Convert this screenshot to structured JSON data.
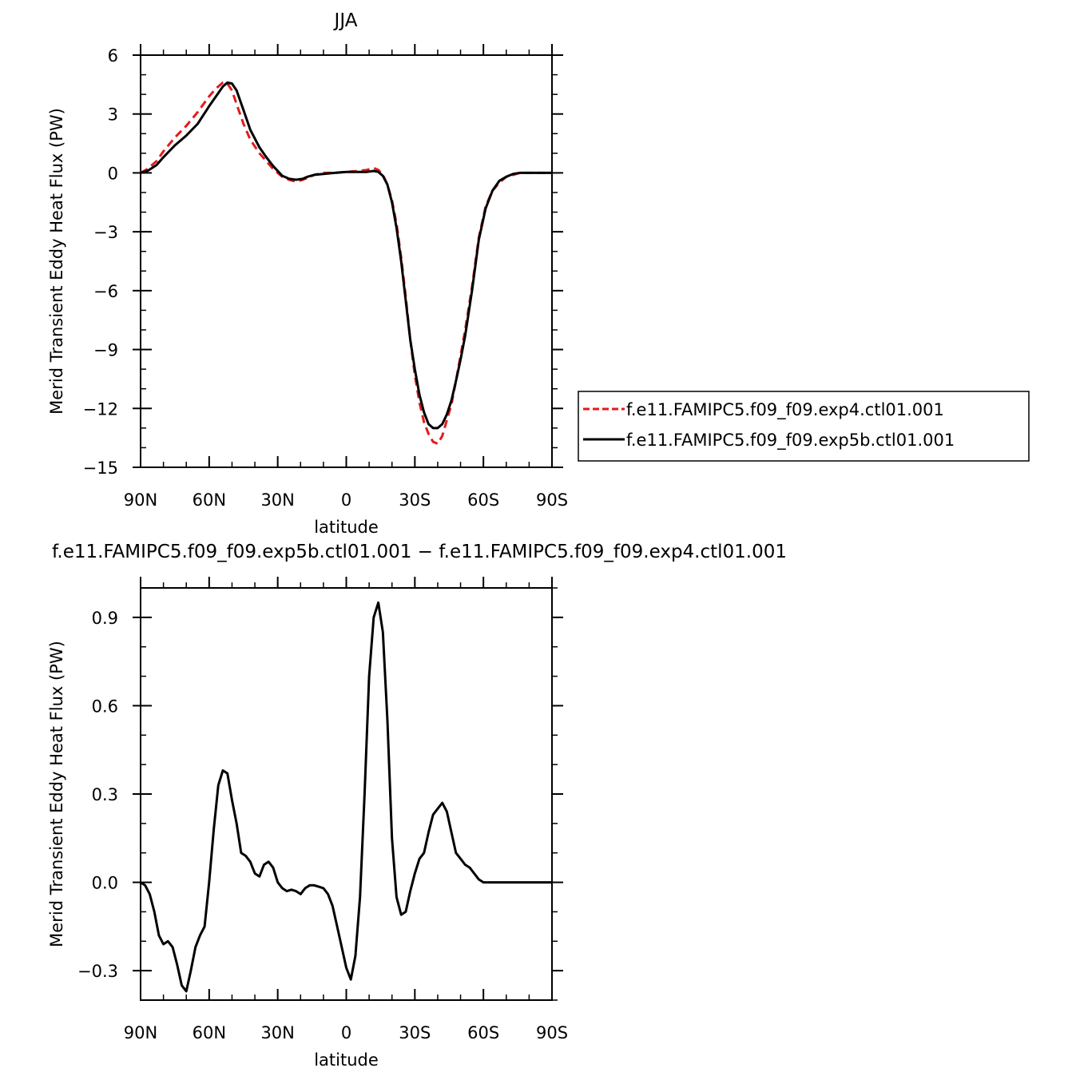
{
  "chart_data": [
    {
      "type": "line",
      "title": "JJA",
      "xlabel": "latitude",
      "ylabel": "Merid Transient Eddy Heat Flux (PW)",
      "xlim": [
        -90,
        90
      ],
      "ylim": [
        -15,
        6
      ],
      "x_ticks": [
        {
          "value": -90,
          "label": "90N"
        },
        {
          "value": -60,
          "label": "60N"
        },
        {
          "value": -30,
          "label": "30N"
        },
        {
          "value": 0,
          "label": "0"
        },
        {
          "value": 30,
          "label": "30S"
        },
        {
          "value": 60,
          "label": "60S"
        },
        {
          "value": 90,
          "label": "90S"
        }
      ],
      "y_ticks": [
        {
          "value": 6,
          "label": "6"
        },
        {
          "value": 3,
          "label": "3"
        },
        {
          "value": 0,
          "label": "0"
        },
        {
          "value": -3,
          "label": "−3"
        },
        {
          "value": -6,
          "label": "−6"
        },
        {
          "value": -9,
          "label": "−9"
        },
        {
          "value": -12,
          "label": "−12"
        },
        {
          "value": -15,
          "label": "−15"
        }
      ],
      "legend_position": "right",
      "series": [
        {
          "name": "f.e11.FAMIPC5.f09_f09.exp4.ctl01.001",
          "color": "#e41a1c",
          "dash": "dashed",
          "x": [
            -90,
            -87,
            -83,
            -80,
            -75,
            -70,
            -65,
            -60,
            -57,
            -54,
            -52,
            -50,
            -48,
            -45,
            -42,
            -38,
            -35,
            -32,
            -28,
            -25,
            -22,
            -19,
            -17,
            -14,
            -10,
            -5,
            0,
            5,
            9,
            12,
            14,
            16,
            18,
            20,
            22,
            24,
            26,
            28,
            30,
            32,
            34,
            36,
            38,
            40,
            42,
            44,
            46,
            48,
            50,
            52,
            55,
            58,
            61,
            64,
            67,
            70,
            73,
            76,
            80,
            85,
            90
          ],
          "y": [
            0,
            0.2,
            0.6,
            1.1,
            1.8,
            2.4,
            3.1,
            3.9,
            4.3,
            4.6,
            4.55,
            4.2,
            3.5,
            2.5,
            1.7,
            1.0,
            0.6,
            0.2,
            -0.2,
            -0.35,
            -0.45,
            -0.35,
            -0.25,
            -0.1,
            0,
            0,
            0.05,
            0.1,
            0.15,
            0.25,
            0.15,
            -0.1,
            -0.6,
            -1.4,
            -2.6,
            -4.3,
            -6.3,
            -8.5,
            -10.3,
            -11.7,
            -12.7,
            -13.3,
            -13.7,
            -13.8,
            -13.4,
            -12.6,
            -11.8,
            -10.6,
            -9.3,
            -8.0,
            -5.8,
            -3.3,
            -1.7,
            -0.9,
            -0.5,
            -0.2,
            -0.1,
            0,
            0,
            0,
            0
          ]
        },
        {
          "name": "f.e11.FAMIPC5.f09_f09.exp5b.ctl01.001",
          "color": "#000000",
          "dash": "solid",
          "x": [
            -90,
            -87,
            -83,
            -80,
            -75,
            -70,
            -65,
            -60,
            -57,
            -54,
            -52,
            -50,
            -48,
            -45,
            -42,
            -38,
            -35,
            -32,
            -28,
            -25,
            -22,
            -19,
            -17,
            -14,
            -10,
            -5,
            0,
            5,
            9,
            12,
            14,
            16,
            18,
            20,
            22,
            24,
            26,
            28,
            30,
            32,
            34,
            36,
            38,
            40,
            42,
            44,
            46,
            48,
            50,
            52,
            55,
            58,
            61,
            64,
            67,
            70,
            73,
            76,
            80,
            85,
            90
          ],
          "y": [
            0,
            0.1,
            0.4,
            0.8,
            1.4,
            1.9,
            2.5,
            3.4,
            3.9,
            4.4,
            4.6,
            4.55,
            4.2,
            3.2,
            2.2,
            1.3,
            0.8,
            0.35,
            -0.15,
            -0.3,
            -0.35,
            -0.3,
            -0.2,
            -0.1,
            -0.05,
            0,
            0.05,
            0.05,
            0.05,
            0.1,
            0.05,
            -0.15,
            -0.6,
            -1.5,
            -2.8,
            -4.5,
            -6.5,
            -8.5,
            -10.0,
            -11.3,
            -12.2,
            -12.8,
            -13.0,
            -13.0,
            -12.8,
            -12.3,
            -11.6,
            -10.6,
            -9.5,
            -8.3,
            -6.0,
            -3.4,
            -1.8,
            -0.9,
            -0.4,
            -0.2,
            -0.05,
            0,
            0,
            0,
            0
          ]
        }
      ]
    },
    {
      "type": "line",
      "title": "f.e11.FAMIPC5.f09_f09.exp5b.ctl01.001 − f.e11.FAMIPC5.f09_f09.exp4.ctl01.001",
      "xlabel": "latitude",
      "ylabel": "Merid Transient Eddy Heat Flux (PW)",
      "xlim": [
        -90,
        90
      ],
      "ylim": [
        -0.4,
        1.0
      ],
      "x_ticks": [
        {
          "value": -90,
          "label": "90N"
        },
        {
          "value": -60,
          "label": "60N"
        },
        {
          "value": -30,
          "label": "30N"
        },
        {
          "value": 0,
          "label": "0"
        },
        {
          "value": 30,
          "label": "30S"
        },
        {
          "value": 60,
          "label": "60S"
        },
        {
          "value": 90,
          "label": "90S"
        }
      ],
      "y_ticks": [
        {
          "value": 0.9,
          "label": "0.9"
        },
        {
          "value": 0.6,
          "label": "0.6"
        },
        {
          "value": 0.3,
          "label": "0.3"
        },
        {
          "value": 0.0,
          "label": "0.0"
        },
        {
          "value": -0.3,
          "label": "−0.3"
        }
      ],
      "series": [
        {
          "color": "#000000",
          "dash": "solid",
          "x": [
            -90,
            -88,
            -86,
            -84,
            -82,
            -80,
            -78,
            -76,
            -74,
            -72,
            -70,
            -68,
            -66,
            -64,
            -62,
            -60,
            -58,
            -56,
            -54,
            -52,
            -50,
            -48,
            -46,
            -44,
            -42,
            -40,
            -38,
            -36,
            -34,
            -32,
            -30,
            -28,
            -26,
            -24,
            -22,
            -20,
            -18,
            -16,
            -14,
            -12,
            -10,
            -8,
            -6,
            -4,
            -2,
            0,
            2,
            4,
            6,
            8,
            10,
            12,
            14,
            16,
            18,
            20,
            22,
            24,
            26,
            28,
            30,
            32,
            34,
            36,
            38,
            40,
            42,
            44,
            46,
            48,
            50,
            52,
            54,
            56,
            58,
            60,
            62,
            64,
            66,
            68,
            70,
            72,
            74,
            76,
            78,
            80,
            82,
            84,
            86,
            88,
            90
          ],
          "y": [
            0,
            -0.01,
            -0.04,
            -0.1,
            -0.18,
            -0.21,
            -0.2,
            -0.22,
            -0.28,
            -0.35,
            -0.37,
            -0.3,
            -0.22,
            -0.18,
            -0.15,
            0.0,
            0.18,
            0.33,
            0.38,
            0.37,
            0.28,
            0.2,
            0.1,
            0.09,
            0.07,
            0.03,
            0.02,
            0.06,
            0.07,
            0.05,
            0.0,
            -0.02,
            -0.03,
            -0.025,
            -0.03,
            -0.04,
            -0.02,
            -0.01,
            -0.01,
            -0.015,
            -0.02,
            -0.04,
            -0.08,
            -0.15,
            -0.22,
            -0.29,
            -0.33,
            -0.25,
            -0.05,
            0.3,
            0.7,
            0.9,
            0.95,
            0.85,
            0.55,
            0.15,
            -0.05,
            -0.11,
            -0.1,
            -0.03,
            0.03,
            0.08,
            0.1,
            0.17,
            0.23,
            0.25,
            0.27,
            0.24,
            0.17,
            0.1,
            0.08,
            0.06,
            0.05,
            0.03,
            0.01,
            0.0,
            0.0,
            0.0,
            0.0,
            0.0,
            0.0,
            0.0,
            0.0,
            0.0,
            0.0,
            0.0,
            0.0,
            0.0,
            0.0,
            0.0,
            0.0
          ]
        }
      ]
    }
  ]
}
